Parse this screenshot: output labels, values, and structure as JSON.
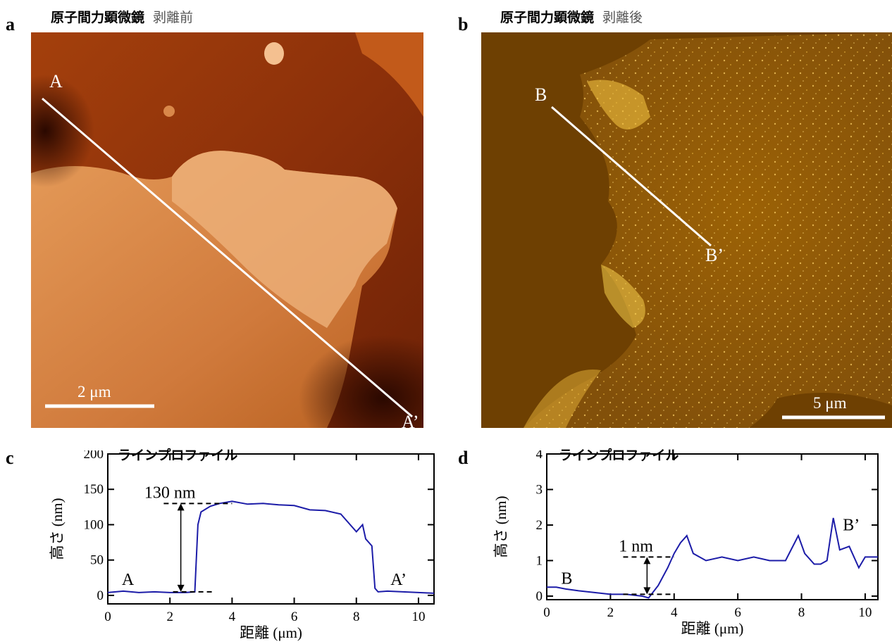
{
  "panels": {
    "a": {
      "letter": "a",
      "title_bold": "原子間力顕微鏡",
      "title_sub": "剥離前",
      "start_label": "A",
      "end_label": "A’",
      "scalebar": "2 μm"
    },
    "b": {
      "letter": "b",
      "title_bold": "原子間力顕微鏡",
      "title_sub": "剥離後",
      "start_label": "B",
      "end_label": "B’",
      "scalebar": "5 μm"
    },
    "c": {
      "letter": "c",
      "title": "ラインプロファイル"
    },
    "d": {
      "letter": "d",
      "title": "ラインプロファイル"
    }
  },
  "colors": {
    "profile": "#1c1ca8",
    "afm_a_dark": "#3a0e02",
    "afm_a_light": "#f2b47a",
    "afm_b_dark": "#6a3a00",
    "afm_b_bright": "#ffe07a"
  },
  "chart_data": [
    {
      "type": "line",
      "panel": "c",
      "title": "ラインプロファイル",
      "xlabel": "距離 (μm)",
      "ylabel": "高さ (nm)",
      "xlim": [
        0,
        10.5
      ],
      "ylim": [
        -12,
        200
      ],
      "xticks": [
        0,
        2,
        4,
        6,
        8,
        10
      ],
      "yticks": [
        0,
        50,
        100,
        150,
        200
      ],
      "annotation": "130 nm",
      "start_label": "A",
      "end_label": "A’",
      "x": [
        0,
        0.5,
        1,
        1.5,
        2,
        2.5,
        2.8,
        2.9,
        3.0,
        3.3,
        3.6,
        4.0,
        4.5,
        5.0,
        5.5,
        6.0,
        6.5,
        7.0,
        7.5,
        8.0,
        8.2,
        8.3,
        8.5,
        8.6,
        8.7,
        9.0,
        9.5,
        10.0,
        10.5
      ],
      "y": [
        4,
        6,
        4,
        5,
        4,
        4,
        5,
        100,
        118,
        126,
        130,
        133,
        129,
        130,
        128,
        127,
        121,
        120,
        115,
        90,
        100,
        80,
        70,
        10,
        5,
        6,
        5,
        4,
        3
      ]
    },
    {
      "type": "line",
      "panel": "d",
      "title": "ラインプロファイル",
      "xlabel": "距離 (μm)",
      "ylabel": "高さ (nm)",
      "xlim": [
        0,
        10.4
      ],
      "ylim": [
        -0.1,
        4
      ],
      "xticks": [
        0,
        2,
        4,
        6,
        8,
        10
      ],
      "yticks": [
        0,
        1,
        2,
        3,
        4
      ],
      "annotation": "1 nm",
      "start_label": "B",
      "end_label": "B’",
      "x": [
        0,
        0.3,
        0.6,
        1.0,
        1.5,
        2.0,
        2.5,
        3.0,
        3.2,
        3.5,
        3.8,
        4.0,
        4.2,
        4.4,
        4.6,
        5.0,
        5.5,
        6.0,
        6.5,
        7.0,
        7.5,
        7.9,
        8.1,
        8.4,
        8.6,
        8.8,
        9.0,
        9.2,
        9.5,
        9.8,
        10.0,
        10.4
      ],
      "y": [
        0.25,
        0.25,
        0.2,
        0.15,
        0.1,
        0.05,
        0.05,
        0.0,
        -0.05,
        0.3,
        0.8,
        1.2,
        1.5,
        1.7,
        1.2,
        1.0,
        1.1,
        1.0,
        1.1,
        1.0,
        1.0,
        1.7,
        1.2,
        0.9,
        0.9,
        1.0,
        2.2,
        1.3,
        1.4,
        0.8,
        1.1,
        1.1
      ]
    }
  ]
}
